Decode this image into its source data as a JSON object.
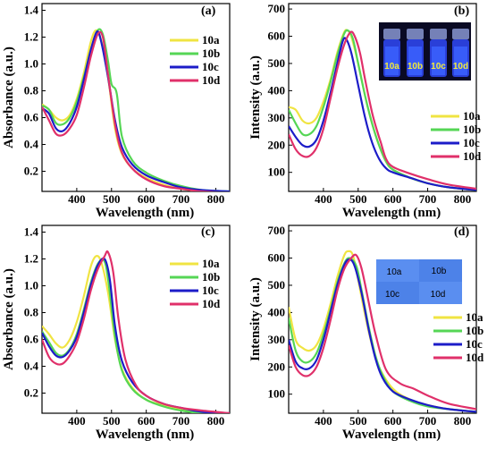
{
  "colors": {
    "10a": "#f0e442",
    "10b": "#55d655",
    "10c": "#1c1cc8",
    "10d": "#e0306a"
  },
  "chart_data": [
    {
      "type": "line",
      "panel_label": "(a)",
      "xlabel": "Wavelength (nm)",
      "ylabel": "Absorbance (a.u.)",
      "xlim": [
        300,
        840
      ],
      "ylim": [
        0.05,
        1.45
      ],
      "xticks": [
        400,
        500,
        600,
        700,
        800
      ],
      "yticks": [
        0.2,
        0.4,
        0.6,
        0.8,
        1.0,
        1.2,
        1.4
      ],
      "ytick_labels": [
        "0.2",
        "0.4",
        "0.6",
        "0.8",
        "1.0",
        "1.2",
        "1.4"
      ],
      "legend_position": "right",
      "series": [
        {
          "name": "10a",
          "x": [
            300,
            320,
            340,
            360,
            380,
            400,
            420,
            440,
            455,
            470,
            490,
            510,
            530,
            560,
            600,
            650,
            700,
            760,
            840
          ],
          "y": [
            0.7,
            0.66,
            0.6,
            0.58,
            0.62,
            0.74,
            0.93,
            1.16,
            1.25,
            1.18,
            0.9,
            0.52,
            0.33,
            0.22,
            0.15,
            0.1,
            0.07,
            0.05,
            0.04
          ]
        },
        {
          "name": "10b",
          "x": [
            300,
            320,
            340,
            360,
            380,
            400,
            420,
            440,
            460,
            475,
            490,
            500,
            515,
            530,
            560,
            600,
            650,
            700,
            760,
            840
          ],
          "y": [
            0.69,
            0.66,
            0.56,
            0.55,
            0.6,
            0.72,
            0.9,
            1.1,
            1.25,
            1.22,
            1.02,
            0.85,
            0.78,
            0.46,
            0.28,
            0.19,
            0.13,
            0.09,
            0.06,
            0.05
          ]
        },
        {
          "name": "10c",
          "x": [
            300,
            320,
            340,
            360,
            380,
            400,
            420,
            440,
            458,
            470,
            490,
            510,
            530,
            560,
            600,
            650,
            700,
            760,
            840
          ],
          "y": [
            0.67,
            0.63,
            0.52,
            0.5,
            0.56,
            0.68,
            0.88,
            1.1,
            1.24,
            1.17,
            0.9,
            0.58,
            0.38,
            0.25,
            0.17,
            0.12,
            0.08,
            0.06,
            0.05
          ]
        },
        {
          "name": "10d",
          "x": [
            300,
            320,
            340,
            360,
            380,
            400,
            420,
            440,
            460,
            475,
            490,
            510,
            530,
            560,
            600,
            650,
            700,
            760,
            840
          ],
          "y": [
            0.68,
            0.58,
            0.48,
            0.47,
            0.52,
            0.62,
            0.82,
            1.05,
            1.22,
            1.2,
            0.92,
            0.55,
            0.34,
            0.22,
            0.14,
            0.09,
            0.07,
            0.05,
            0.04
          ]
        }
      ]
    },
    {
      "type": "line",
      "panel_label": "(b)",
      "xlabel": "Wavelength (nm)",
      "ylabel": "Intensity (a.u.)",
      "xlim": [
        300,
        840
      ],
      "ylim": [
        30,
        720
      ],
      "xticks": [
        400,
        500,
        600,
        700,
        800
      ],
      "yticks": [
        100,
        200,
        300,
        400,
        500,
        600,
        700
      ],
      "ytick_labels": [
        "100",
        "200",
        "300",
        "400",
        "500",
        "600",
        "700"
      ],
      "legend_position": "right",
      "inset_labels": [
        "10a",
        "10b",
        "10c",
        "10d"
      ],
      "series": [
        {
          "name": "10a",
          "x": [
            300,
            320,
            340,
            360,
            380,
            400,
            420,
            440,
            460,
            470,
            480,
            500,
            520,
            540,
            560,
            580,
            600,
            650,
            700,
            760,
            840
          ],
          "y": [
            340,
            330,
            290,
            280,
            300,
            360,
            440,
            540,
            615,
            620,
            600,
            500,
            380,
            280,
            200,
            140,
            110,
            80,
            60,
            45,
            35
          ]
        },
        {
          "name": "10b",
          "x": [
            300,
            320,
            340,
            360,
            380,
            400,
            420,
            440,
            460,
            472,
            485,
            500,
            520,
            540,
            560,
            580,
            600,
            650,
            700,
            760,
            840
          ],
          "y": [
            330,
            280,
            240,
            240,
            270,
            340,
            430,
            530,
            610,
            620,
            590,
            500,
            380,
            280,
            200,
            140,
            110,
            80,
            60,
            45,
            35
          ]
        },
        {
          "name": "10c",
          "x": [
            300,
            320,
            340,
            360,
            380,
            400,
            420,
            440,
            455,
            465,
            480,
            500,
            520,
            540,
            560,
            580,
            600,
            650,
            700,
            760,
            840
          ],
          "y": [
            270,
            230,
            200,
            195,
            220,
            290,
            390,
            500,
            580,
            590,
            540,
            420,
            300,
            210,
            150,
            115,
            100,
            80,
            60,
            45,
            35
          ]
        },
        {
          "name": "10d",
          "x": [
            300,
            320,
            340,
            360,
            380,
            400,
            420,
            440,
            460,
            478,
            490,
            505,
            520,
            540,
            555,
            565,
            580,
            600,
            650,
            700,
            760,
            840
          ],
          "y": [
            240,
            185,
            160,
            160,
            190,
            260,
            370,
            480,
            570,
            615,
            600,
            540,
            440,
            320,
            250,
            210,
            150,
            120,
            95,
            75,
            55,
            40
          ]
        }
      ]
    },
    {
      "type": "line",
      "panel_label": "(c)",
      "xlabel": "Wavelength (nm)",
      "ylabel": "Absorbance (a.u.)",
      "xlim": [
        300,
        840
      ],
      "ylim": [
        0.05,
        1.45
      ],
      "xticks": [
        400,
        500,
        600,
        700,
        800
      ],
      "yticks": [
        0.2,
        0.4,
        0.6,
        0.8,
        1.0,
        1.2,
        1.4
      ],
      "ytick_labels": [
        "0.2",
        "0.4",
        "0.6",
        "0.8",
        "1.0",
        "1.2",
        "1.4"
      ],
      "legend_position": "right",
      "series": [
        {
          "name": "10a",
          "x": [
            300,
            320,
            340,
            360,
            380,
            400,
            420,
            440,
            455,
            470,
            490,
            510,
            530,
            560,
            600,
            650,
            700,
            760,
            840
          ],
          "y": [
            0.7,
            0.64,
            0.57,
            0.54,
            0.6,
            0.73,
            0.92,
            1.14,
            1.22,
            1.18,
            0.95,
            0.6,
            0.38,
            0.24,
            0.15,
            0.11,
            0.08,
            0.06,
            0.04
          ]
        },
        {
          "name": "10b",
          "x": [
            300,
            320,
            340,
            360,
            380,
            400,
            420,
            440,
            460,
            478,
            490,
            510,
            530,
            560,
            600,
            650,
            700,
            760,
            840
          ],
          "y": [
            0.66,
            0.58,
            0.5,
            0.48,
            0.53,
            0.64,
            0.82,
            1.02,
            1.16,
            1.19,
            1.05,
            0.62,
            0.37,
            0.23,
            0.15,
            0.1,
            0.07,
            0.05,
            0.04
          ]
        },
        {
          "name": "10c",
          "x": [
            300,
            320,
            340,
            360,
            380,
            400,
            420,
            440,
            460,
            480,
            495,
            510,
            530,
            560,
            600,
            650,
            700,
            760,
            840
          ],
          "y": [
            0.65,
            0.55,
            0.48,
            0.47,
            0.52,
            0.62,
            0.8,
            1.0,
            1.15,
            1.2,
            1.05,
            0.7,
            0.44,
            0.28,
            0.18,
            0.12,
            0.09,
            0.06,
            0.05
          ]
        },
        {
          "name": "10d",
          "x": [
            300,
            320,
            340,
            360,
            380,
            400,
            420,
            440,
            460,
            480,
            490,
            505,
            520,
            540,
            570,
            600,
            650,
            700,
            760,
            840
          ],
          "y": [
            0.6,
            0.47,
            0.42,
            0.42,
            0.48,
            0.58,
            0.75,
            0.96,
            1.12,
            1.22,
            1.25,
            1.1,
            0.75,
            0.45,
            0.26,
            0.18,
            0.12,
            0.09,
            0.07,
            0.05
          ]
        }
      ]
    },
    {
      "type": "line",
      "panel_label": "(d)",
      "xlabel": "Wavelength (nm)",
      "ylabel": "Intensity (a.u.)",
      "xlim": [
        300,
        840
      ],
      "ylim": [
        30,
        720
      ],
      "xticks": [
        400,
        500,
        600,
        700,
        800
      ],
      "yticks": [
        100,
        200,
        300,
        400,
        500,
        600,
        700
      ],
      "ytick_labels": [
        "100",
        "200",
        "300",
        "400",
        "500",
        "600",
        "700"
      ],
      "legend_position": "right",
      "inset_labels": [
        "10a",
        "10b",
        "10c",
        "10d"
      ],
      "series": [
        {
          "name": "10a",
          "x": [
            300,
            320,
            340,
            360,
            380,
            400,
            420,
            440,
            460,
            472,
            485,
            500,
            520,
            540,
            560,
            600,
            650,
            700,
            760,
            840
          ],
          "y": [
            420,
            300,
            270,
            260,
            280,
            340,
            430,
            530,
            610,
            625,
            610,
            520,
            390,
            280,
            200,
            120,
            80,
            60,
            45,
            35
          ]
        },
        {
          "name": "10b",
          "x": [
            300,
            320,
            340,
            360,
            380,
            400,
            420,
            440,
            460,
            475,
            495,
            510,
            530,
            550,
            570,
            600,
            650,
            700,
            760,
            840
          ],
          "y": [
            380,
            260,
            220,
            220,
            250,
            320,
            410,
            510,
            580,
            600,
            570,
            480,
            350,
            240,
            170,
            110,
            75,
            55,
            45,
            35
          ]
        },
        {
          "name": "10c",
          "x": [
            300,
            320,
            340,
            360,
            380,
            400,
            420,
            440,
            460,
            475,
            490,
            510,
            530,
            550,
            570,
            600,
            650,
            700,
            760,
            840
          ],
          "y": [
            300,
            220,
            195,
            195,
            225,
            300,
            400,
            500,
            575,
            595,
            570,
            470,
            340,
            230,
            160,
            110,
            80,
            60,
            45,
            35
          ]
        },
        {
          "name": "10d",
          "x": [
            300,
            320,
            340,
            360,
            380,
            400,
            420,
            440,
            460,
            480,
            495,
            510,
            530,
            550,
            580,
            620,
            660,
            700,
            760,
            840
          ],
          "y": [
            280,
            200,
            170,
            170,
            200,
            270,
            370,
            480,
            560,
            600,
            610,
            560,
            440,
            320,
            190,
            140,
            120,
            95,
            65,
            45
          ]
        }
      ]
    }
  ]
}
